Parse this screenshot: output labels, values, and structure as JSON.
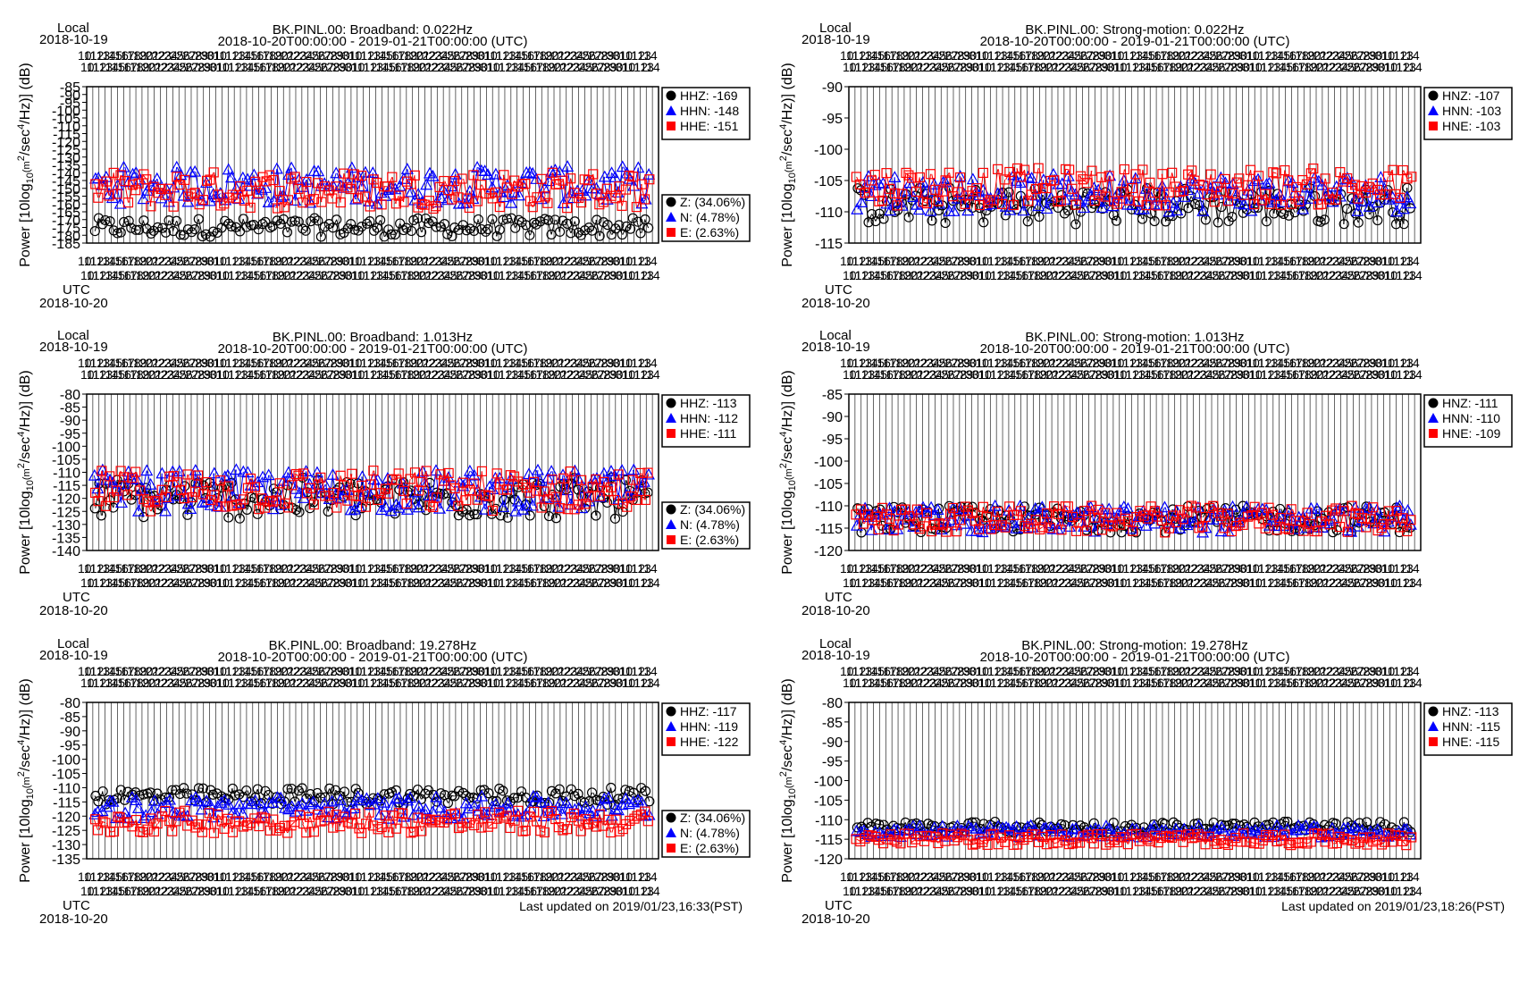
{
  "colors": {
    "z": "#000000",
    "n": "#0000ff",
    "e": "#ff0000",
    "grid": "#000000"
  },
  "axis_labels": {
    "local": "Local",
    "utc": "UTC",
    "start_date": "2018-10-20",
    "local_start_date": "2018-10-19",
    "ylabel": "Power [10log10(m2/sec4/Hz)] (dB)",
    "ylabel_parts": {
      "a": "Power [10log",
      "sub": "10",
      "b": "(m",
      "sup1": "2",
      "c": "/sec",
      "sup2": "4",
      "d": "/Hz)] (dB)"
    }
  },
  "panels": [
    {
      "id": "bb-0022",
      "title": "BK.PINL.00: Broadband: 0.022Hz",
      "subtitle": "2018-10-20T00:00:00 - 2019-01-21T00:00:00 (UTC)",
      "legend": [
        "HHZ: -169",
        "HHN: -148",
        "HHE: -151"
      ],
      "availability": [
        "Z: (34.06%)",
        "N: (4.78%)",
        "E: (2.63%)"
      ],
      "ylim": [
        -185,
        -85
      ],
      "yticks": [
        "-85",
        "-90",
        "-95",
        "-100",
        "-105",
        "-110",
        "-115",
        "-120",
        "-125",
        "-130",
        "-135",
        "-140",
        "-145",
        "-150",
        "-155",
        "-160",
        "-165",
        "-170",
        "-175",
        "-180",
        "-185"
      ],
      "footer": ""
    },
    {
      "id": "sm-0022",
      "title": "BK.PINL.00: Strong-motion: 0.022Hz",
      "subtitle": "2018-10-20T00:00:00 - 2019-01-21T00:00:00 (UTC)",
      "legend": [
        "HNZ: -107",
        "HNN: -103",
        "HNE: -103"
      ],
      "availability": [],
      "ylim": [
        -115,
        -90
      ],
      "yticks": [
        "-90",
        "-95",
        "-100",
        "-105",
        "-110",
        "-115"
      ],
      "footer": ""
    },
    {
      "id": "bb-1013",
      "title": "BK.PINL.00: Broadband: 1.013Hz",
      "subtitle": "2018-10-20T00:00:00 - 2019-01-21T00:00:00 (UTC)",
      "legend": [
        "HHZ: -113",
        "HHN: -112",
        "HHE: -111"
      ],
      "availability": [
        "Z: (34.06%)",
        "N: (4.78%)",
        "E: (2.63%)"
      ],
      "ylim": [
        -140,
        -80
      ],
      "yticks": [
        "-80",
        "-85",
        "-90",
        "-95",
        "-100",
        "-105",
        "-110",
        "-115",
        "-120",
        "-125",
        "-130",
        "-135",
        "-140"
      ],
      "footer": ""
    },
    {
      "id": "sm-1013",
      "title": "BK.PINL.00: Strong-motion: 1.013Hz",
      "subtitle": "2018-10-20T00:00:00 - 2019-01-21T00:00:00 (UTC)",
      "legend": [
        "HNZ: -111",
        "HNN: -110",
        "HNE: -109"
      ],
      "availability": [],
      "ylim": [
        -120,
        -85
      ],
      "yticks": [
        "-85",
        "-90",
        "-95",
        "-100",
        "-105",
        "-110",
        "-115",
        "-120"
      ],
      "footer": ""
    },
    {
      "id": "bb-19278",
      "title": "BK.PINL.00: Broadband: 19.278Hz",
      "subtitle": "2018-10-20T00:00:00 - 2019-01-21T00:00:00 (UTC)",
      "legend": [
        "HHZ: -117",
        "HHN: -119",
        "HHE: -122"
      ],
      "availability": [
        "Z: (34.06%)",
        "N: (4.78%)",
        "E: (2.63%)"
      ],
      "ylim": [
        -135,
        -80
      ],
      "yticks": [
        "-80",
        "-85",
        "-90",
        "-95",
        "-100",
        "-105",
        "-110",
        "-115",
        "-120",
        "-125",
        "-130",
        "-135"
      ],
      "footer": "Last updated on 2019/01/23,16:33(PST)"
    },
    {
      "id": "sm-19278",
      "title": "BK.PINL.00: Strong-motion: 19.278Hz",
      "subtitle": "2018-10-20T00:00:00 - 2019-01-21T00:00:00 (UTC)",
      "legend": [
        "HNZ: -113",
        "HNN: -115",
        "HNE: -115"
      ],
      "availability": [],
      "ylim": [
        -120,
        -80
      ],
      "yticks": [
        "-80",
        "-85",
        "-90",
        "-95",
        "-100",
        "-105",
        "-110",
        "-115",
        "-120"
      ],
      "footer": "Last updated on 2019/01/23,18:26(PST)"
    }
  ],
  "chart_data": [
    {
      "type": "scatter",
      "title": "BK.PINL.00: Broadband: 0.022Hz",
      "ylim": [
        -185,
        -85
      ],
      "series": [
        {
          "name": "HHZ",
          "level": -175,
          "spread": 6
        },
        {
          "name": "HHN",
          "level": -148,
          "spread": 12
        },
        {
          "name": "HHE",
          "level": -151,
          "spread": 12
        }
      ]
    },
    {
      "type": "scatter",
      "title": "BK.PINL.00: Strong-motion: 0.022Hz",
      "ylim": [
        -115,
        -90
      ],
      "series": [
        {
          "name": "HNZ",
          "level": -109,
          "spread": 3
        },
        {
          "name": "HNN",
          "level": -107,
          "spread": 3
        },
        {
          "name": "HNE",
          "level": -106,
          "spread": 3
        }
      ]
    },
    {
      "type": "scatter",
      "title": "BK.PINL.00: Broadband: 1.013Hz",
      "ylim": [
        -140,
        -80
      ],
      "series": [
        {
          "name": "HHZ",
          "level": -120,
          "spread": 8
        },
        {
          "name": "HHN",
          "level": -117,
          "spread": 8
        },
        {
          "name": "HHE",
          "level": -117,
          "spread": 8
        }
      ]
    },
    {
      "type": "scatter",
      "title": "BK.PINL.00: Strong-motion: 1.013Hz",
      "ylim": [
        -120,
        -85
      ],
      "series": [
        {
          "name": "HNZ",
          "level": -113,
          "spread": 3
        },
        {
          "name": "HNN",
          "level": -113,
          "spread": 3
        },
        {
          "name": "HNE",
          "level": -113,
          "spread": 3
        }
      ]
    },
    {
      "type": "scatter",
      "title": "BK.PINL.00: Broadband: 19.278Hz",
      "ylim": [
        -135,
        -80
      ],
      "series": [
        {
          "name": "HHZ",
          "level": -113,
          "spread": 3
        },
        {
          "name": "HHN",
          "level": -117,
          "spread": 4
        },
        {
          "name": "HHE",
          "level": -122,
          "spread": 4
        }
      ]
    },
    {
      "type": "scatter",
      "title": "BK.PINL.00: Strong-motion: 19.278Hz",
      "ylim": [
        -120,
        -80
      ],
      "series": [
        {
          "name": "HNZ",
          "level": -112,
          "spread": 1.5
        },
        {
          "name": "HNN",
          "level": -113,
          "spread": 1.5
        },
        {
          "name": "HNE",
          "level": -115,
          "spread": 1.5
        }
      ]
    }
  ]
}
